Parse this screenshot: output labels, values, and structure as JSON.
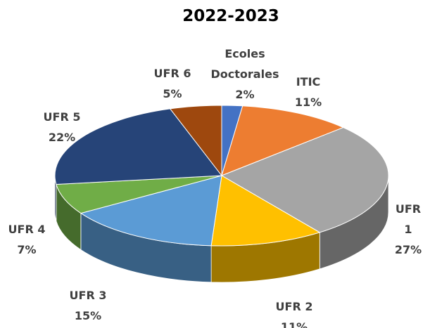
{
  "chart_data": {
    "type": "pie",
    "title": "2022-2023",
    "categories": [
      "Ecoles Doctorales",
      "ITIC",
      "UFR 1",
      "UFR 2",
      "UFR 3",
      "UFR 4",
      "UFR 5",
      "UFR 6"
    ],
    "values": [
      2,
      11,
      27,
      11,
      15,
      7,
      22,
      5
    ],
    "value_labels": [
      "2%",
      "11%",
      "27%",
      "11%",
      "15%",
      "7%",
      "22%",
      "5%"
    ],
    "colors": [
      "#4472c4",
      "#ed7d31",
      "#a5a5a5",
      "#ffc000",
      "#5b9bd5",
      "#70ad47",
      "#264478",
      "#9e480e"
    ]
  }
}
